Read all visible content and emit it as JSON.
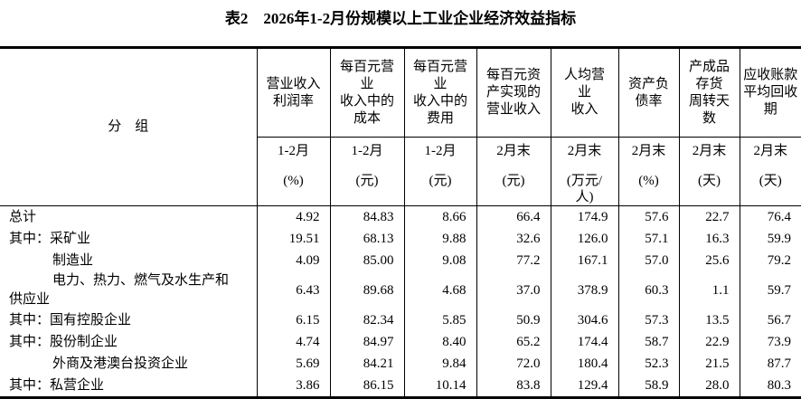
{
  "colors": {
    "background": "#ffffff",
    "text": "#000000",
    "border": "#000000"
  },
  "chart_data": {
    "type": "table",
    "title": "表2　2026年1-2月份规模以上工业企业经济效益指标",
    "group_column_header": "分　组",
    "columns": [
      {
        "name": "营业收入\n利润率",
        "period": "1-2月",
        "unit": "(%)"
      },
      {
        "name": "每百元营\n业\n收入中的\n成本",
        "period": "1-2月",
        "unit": "(元)"
      },
      {
        "name": "每百元营\n业\n收入中的\n费用",
        "period": "1-2月",
        "unit": "(元)"
      },
      {
        "name": "每百元资\n产实现的\n营业收入",
        "period": "2月末",
        "unit": "(元)"
      },
      {
        "name": "人均营\n业\n收入",
        "period": "2月末",
        "unit": "(万元/\n人)"
      },
      {
        "name": "资产负\n债率",
        "period": "2月末",
        "unit": "(%)"
      },
      {
        "name": "产成品\n存货\n周转天\n数",
        "period": "2月末",
        "unit": "(天)"
      },
      {
        "name": "应收账款\n平均回收\n期",
        "period": "2月末",
        "unit": "(天)"
      }
    ],
    "rows": [
      {
        "prefix": "",
        "label": "总计",
        "indent": false,
        "values": [
          "4.92",
          "84.83",
          "8.66",
          "66.4",
          "174.9",
          "57.6",
          "22.7",
          "76.4"
        ]
      },
      {
        "prefix": "其中：",
        "label": "采矿业",
        "indent": false,
        "values": [
          "19.51",
          "68.13",
          "9.88",
          "32.6",
          "126.0",
          "57.1",
          "16.3",
          "59.9"
        ]
      },
      {
        "prefix": "",
        "label": "制造业",
        "indent": true,
        "values": [
          "4.09",
          "85.00",
          "9.08",
          "77.2",
          "167.1",
          "57.0",
          "25.6",
          "79.2"
        ]
      },
      {
        "prefix": "",
        "label": "电力、热力、燃气及水生产和\n供应业",
        "indent": true,
        "values": [
          "6.43",
          "89.68",
          "4.68",
          "37.0",
          "378.9",
          "60.3",
          "1.1",
          "59.7"
        ]
      },
      {
        "prefix": "其中：",
        "label": "国有控股企业",
        "indent": false,
        "values": [
          "6.15",
          "82.34",
          "5.85",
          "50.9",
          "304.6",
          "57.3",
          "13.5",
          "56.7"
        ]
      },
      {
        "prefix": "其中：",
        "label": "股份制企业",
        "indent": false,
        "values": [
          "4.74",
          "84.97",
          "8.40",
          "65.2",
          "174.4",
          "58.7",
          "22.9",
          "73.9"
        ]
      },
      {
        "prefix": "",
        "label": "外商及港澳台投资企业",
        "indent": true,
        "values": [
          "5.69",
          "84.21",
          "9.84",
          "72.0",
          "180.4",
          "52.3",
          "21.5",
          "87.7"
        ]
      },
      {
        "prefix": "其中：",
        "label": "私营企业",
        "indent": false,
        "values": [
          "3.86",
          "86.15",
          "10.14",
          "83.8",
          "129.4",
          "58.9",
          "28.0",
          "80.3"
        ]
      }
    ]
  }
}
